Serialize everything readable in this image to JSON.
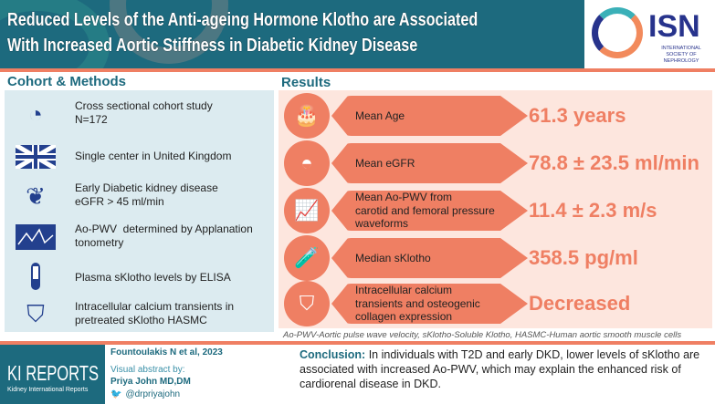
{
  "header": {
    "title": "Reduced Levels of the Anti-ageing Hormone Klotho are Associated\nWith Increased Aortic Stiffness in Diabetic Kidney Disease"
  },
  "logo": {
    "name": "ISN",
    "subtitle": "INTERNATIONAL SOCIETY OF NEPHROLOGY"
  },
  "methods": {
    "title": "Cohort & Methods",
    "items": [
      {
        "icon": "cohort-icon",
        "text": "Cross sectional cohort study\nN=172"
      },
      {
        "icon": "uk-flag-icon",
        "text": "Single center in United Kingdom"
      },
      {
        "icon": "kidney-icon",
        "text": "Early Diabetic kidney disease\neGFR > 45 ml/min"
      },
      {
        "icon": "waveform-icon",
        "text": "Ao-PWV  determined by Applanation\ntonometry"
      },
      {
        "icon": "test-tube-icon",
        "text": "Plasma sKlotho levels by ELISA"
      },
      {
        "icon": "cell-icon",
        "text": "Intracellular calcium transients in\npretreated sKlotho HASMC"
      }
    ]
  },
  "results": {
    "title": "Results",
    "items": [
      {
        "icon": "cake-icon",
        "label": "Mean Age",
        "value": "61.3 years"
      },
      {
        "icon": "gauge-icon",
        "label": "Mean eGFR",
        "value": "78.8 ± 23.5 ml/min"
      },
      {
        "icon": "chart-icon",
        "label": "Mean Ao-PWV from\ncarotid and femoral pressure\nwaveforms",
        "value": "11.4 ± 2.3 m/s"
      },
      {
        "icon": "test-tube-icon",
        "label": "Median sKlotho",
        "value": "358.5 pg/ml"
      },
      {
        "icon": "cell-icon",
        "label": "Intracellular calcium\ntransients and osteogenic\ncollagen expression",
        "value": "Decreased"
      }
    ]
  },
  "abbreviations": "Ao-PWV-Aortic pulse wave  velocity, sKlotho-Soluble Klotho, HASMC-Human aortic smooth muscle cells",
  "footer": {
    "journal": "KI REPORTS",
    "journal_sub": "Kidney International Reports",
    "citation": "Fountoulakis N et al, 2023",
    "visual_by": "Visual abstract by:",
    "author": "Priya John MD,DM",
    "twitter": "@drpriyajohn",
    "conclusion_label": "Conclusion:",
    "conclusion": " In individuals with T2D and early DKD, lower levels of sKlotho are associated with increased Ao-PWV, which may explain the enhanced risk of cardiorenal disease in DKD."
  },
  "colors": {
    "teal": "#1d6a7e",
    "orange": "#ef7f63",
    "light_blue": "#dcebf0",
    "peach": "#fde6de"
  }
}
